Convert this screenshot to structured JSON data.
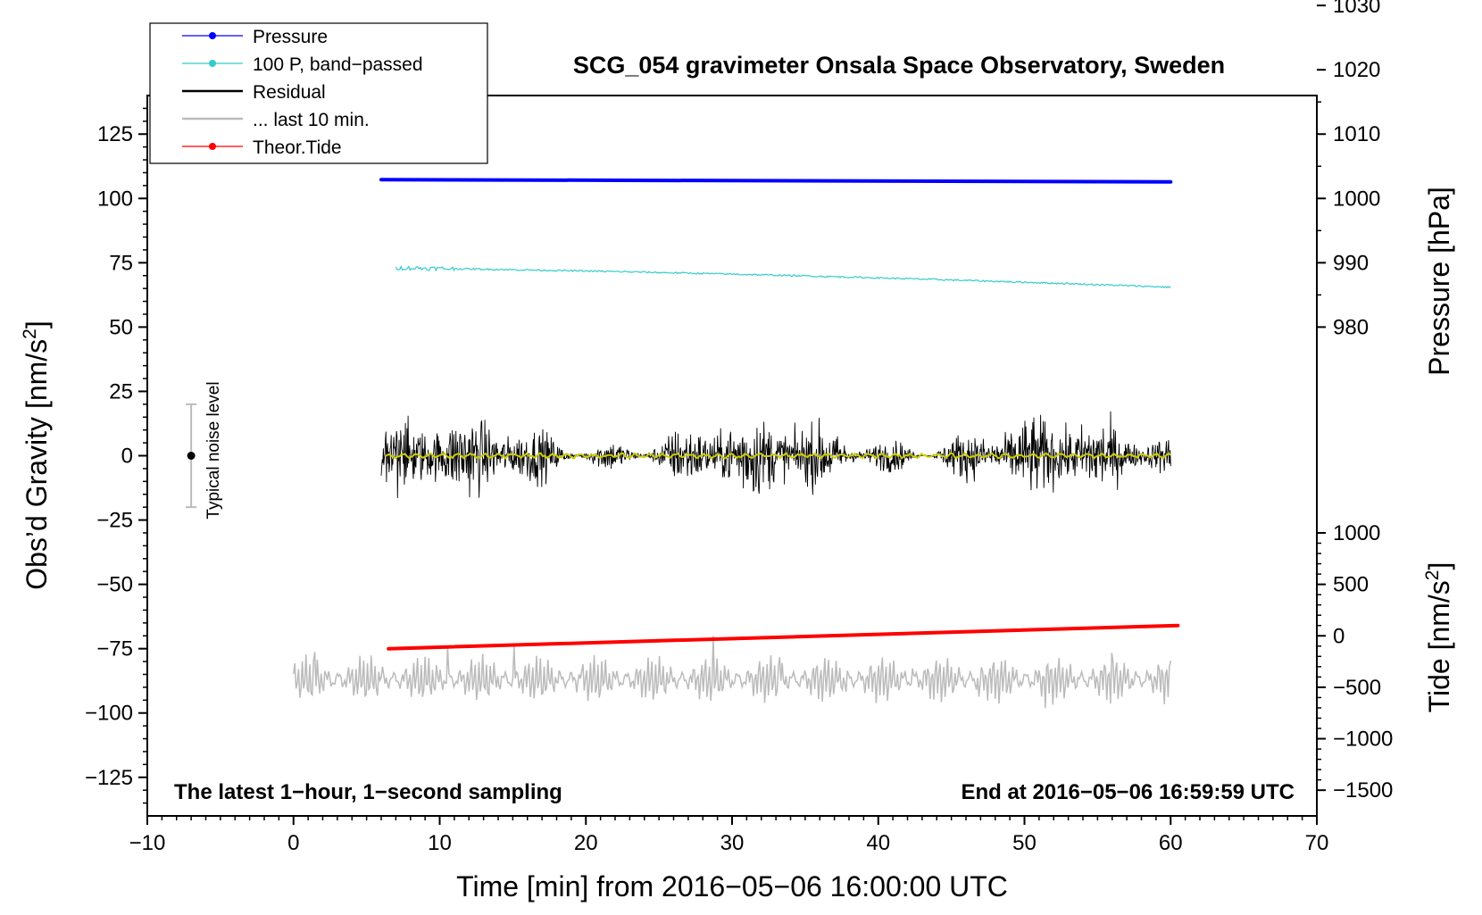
{
  "chart_data": {
    "type": "line",
    "title": "SCG_054 gravimeter Onsala Space Observatory, Sweden",
    "xlabel": "Time [min] from 2016−05−06 16:00:00 UTC",
    "ylabel_left": "Obs’d Gravity [nm/s",
    "ylabel_left_suffix": "]",
    "ylabel_right_pressure": "Pressure [hPa]",
    "ylabel_right_tide": "Tide [nm/s",
    "ylabel_right_tide_suffix": "]",
    "superscript": "2",
    "note_left": "The latest 1−hour, 1−second sampling",
    "note_right": "End at 2016−05−06 16:59:59 UTC",
    "noise_label": "Typical noise level",
    "xlim": [
      -10,
      70
    ],
    "ylim": [
      -140,
      140
    ],
    "x_ticks": [
      -10,
      0,
      10,
      20,
      30,
      40,
      50,
      60,
      70
    ],
    "x_tick_labels": [
      "−10",
      "0",
      "10",
      "20",
      "30",
      "40",
      "50",
      "60",
      "70"
    ],
    "y_ticks": [
      125,
      100,
      75,
      50,
      25,
      0,
      -25,
      -50,
      -75,
      -100,
      -125
    ],
    "y_tick_labels": [
      "125",
      "100",
      "75",
      "50",
      "25",
      "0",
      "−25",
      "−50",
      "−75",
      "−100",
      "−125"
    ],
    "pressure_ticks": [
      1030,
      1020,
      1010,
      1000,
      990,
      980
    ],
    "pressure_tick_labels": [
      "1030",
      "1020",
      "1010",
      "1000",
      "990",
      "980"
    ],
    "pressure_axis_map": {
      "hPa_at_gravity_0": 960,
      "hPa_per_gravity_unit": 0.4
    },
    "tide_ticks": [
      1000,
      500,
      0,
      -500,
      -1000,
      -1500
    ],
    "tide_tick_labels": [
      "1000",
      "500",
      "0",
      "−500",
      "−1000",
      "−1500"
    ],
    "tide_axis_map": {
      "tide_at_gravity_minus_70": 0,
      "tide_per_gravity_unit": 25
    },
    "legend": [
      {
        "label": "Pressure",
        "color": "#0000ff",
        "marker": true
      },
      {
        "label": "100 P, band−passed",
        "color": "#33cccc",
        "marker": true
      },
      {
        "label": "Residual",
        "color": "#000000",
        "marker": false
      },
      {
        "label": "... last 10 min.",
        "color": "#bbbbbb",
        "marker": false
      },
      {
        "label": "Theor.Tide",
        "color": "#ff0000",
        "marker": true
      }
    ],
    "series": [
      {
        "name": "Pressure",
        "color": "#0000ff",
        "x_range": [
          6,
          60
        ],
        "y_start": 107.3,
        "y_end": 106.4
      },
      {
        "name": "100 P, band−passed",
        "color": "#33cccc",
        "x_range": [
          7,
          60
        ],
        "y_start": 73,
        "y_end": 65.5
      },
      {
        "name": "Residual",
        "color": "#000000",
        "x_range": [
          6,
          60
        ],
        "y_center": 0,
        "amplitude_typical": 10,
        "amplitude_peak": 27
      },
      {
        "name": "Residual smoothed",
        "color": "#cccc00",
        "x_range": [
          6.3,
          60
        ],
        "y_center": 0,
        "amplitude_typical": 1
      },
      {
        "name": "... last 10 min.",
        "color": "#bbbbbb",
        "x_range": [
          0,
          60
        ],
        "y_center": -87,
        "amplitude_typical": 8,
        "amplitude_peak": 17
      },
      {
        "name": "Theor.Tide",
        "color": "#ff0000",
        "x_range": [
          6.5,
          60.5
        ],
        "y_start": -75,
        "y_end": -66
      }
    ],
    "noise_level": {
      "x": -7,
      "center": 0,
      "low": -20,
      "high": 20
    }
  }
}
